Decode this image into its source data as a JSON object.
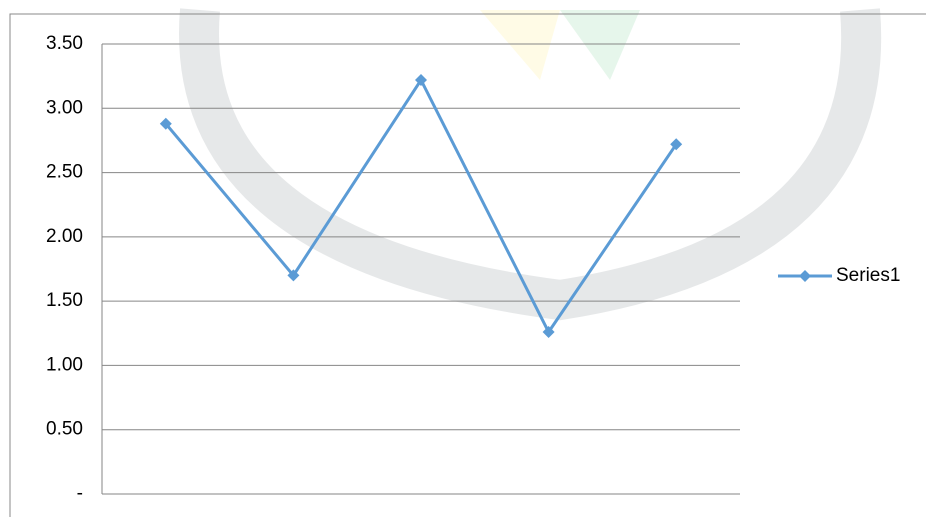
{
  "chart_data": {
    "type": "line",
    "categories": [
      null,
      null,
      null,
      null,
      null
    ],
    "series": [
      {
        "name": "Series1",
        "color": "#5b9bd5",
        "values": [
          2.88,
          1.7,
          3.22,
          1.26,
          2.72
        ]
      }
    ],
    "ylim": [
      0,
      3.5
    ],
    "yticks": [
      {
        "value": 0,
        "label": "-"
      },
      {
        "value": 0.5,
        "label": "0.50"
      },
      {
        "value": 1,
        "label": "1.00"
      },
      {
        "value": 1.5,
        "label": "1.50"
      },
      {
        "value": 2,
        "label": "2.00"
      },
      {
        "value": 2.5,
        "label": "2.50"
      },
      {
        "value": 3,
        "label": "3.00"
      },
      {
        "value": 3.5,
        "label": "3.50"
      }
    ],
    "grid": true,
    "legend": "right"
  }
}
